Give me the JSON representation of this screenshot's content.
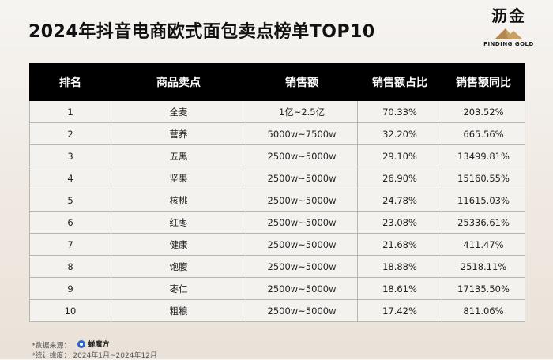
{
  "title": "2024年抖音电商欧式面包卖点榜单TOP10",
  "logo": {
    "name": "沥金",
    "subtitle": "FINDING GOLD",
    "accent": "#c9a063"
  },
  "table": {
    "headers": [
      "排名",
      "商品卖点",
      "销售额",
      "销售额占比",
      "销售额同比"
    ],
    "rows": [
      [
        "1",
        "全麦",
        "1亿~2.5亿",
        "70.33%",
        "203.52%"
      ],
      [
        "2",
        "营养",
        "5000w~7500w",
        "32.20%",
        "665.56%"
      ],
      [
        "3",
        "五黑",
        "2500w~5000w",
        "29.10%",
        "13499.81%"
      ],
      [
        "4",
        "坚果",
        "2500w~5000w",
        "26.90%",
        "15160.55%"
      ],
      [
        "5",
        "核桃",
        "2500w~5000w",
        "24.78%",
        "11615.03%"
      ],
      [
        "6",
        "红枣",
        "2500w~5000w",
        "23.08%",
        "25336.61%"
      ],
      [
        "7",
        "健康",
        "2500w~5000w",
        "21.68%",
        "411.47%"
      ],
      [
        "8",
        "饱腹",
        "2500w~5000w",
        "18.88%",
        "2518.11%"
      ],
      [
        "9",
        "枣仁",
        "2500w~5000w",
        "18.61%",
        "17135.50%"
      ],
      [
        "10",
        "粗粮",
        "2500w~5000w",
        "17.42%",
        "811.06%"
      ]
    ]
  },
  "footer": {
    "source_label": "*数据来源：",
    "source_brand": "蝉魔方",
    "period_label": "*统计维度：",
    "period_value": "2024年1月~2024年12月"
  }
}
